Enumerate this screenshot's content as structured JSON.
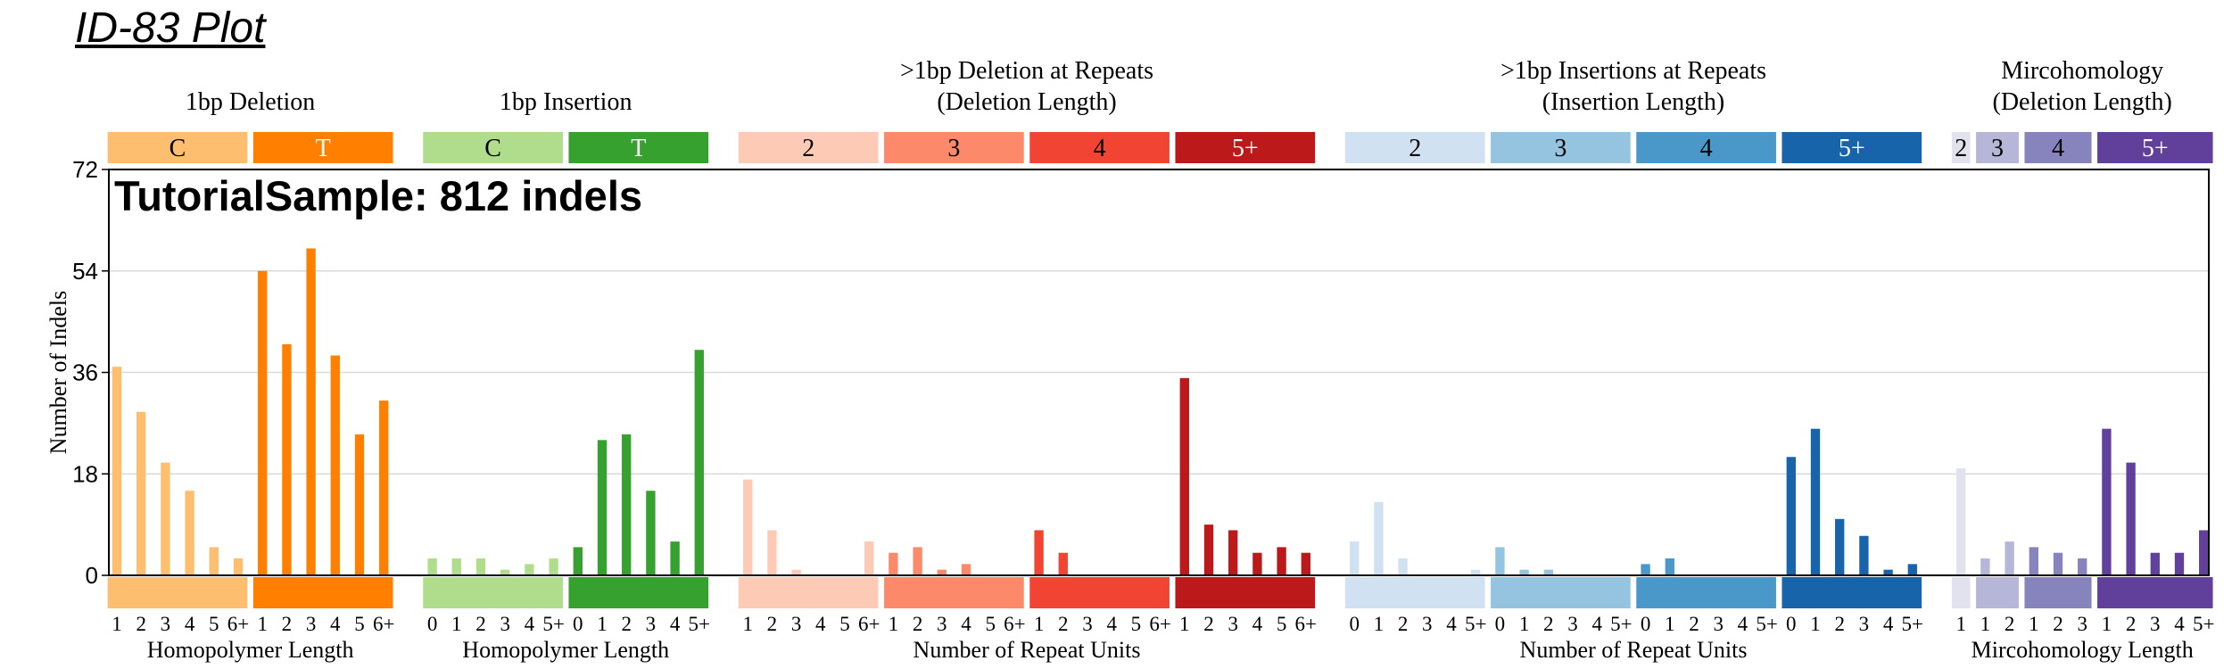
{
  "page_title": "ID-83 Plot",
  "chart_data": {
    "type": "bar",
    "title": "TutorialSample: 812 indels",
    "ylabel": "Number of Indels",
    "ylim": [
      0,
      72
    ],
    "yticks": [
      0,
      18,
      36,
      54,
      72
    ],
    "grid": true,
    "groups": [
      {
        "header": [
          "1bp Deletion"
        ],
        "xlabel": "Homopolymer Length",
        "categories": [
          {
            "label": "C",
            "color": "#FDBE6F",
            "text_color": "#000000",
            "ticks": [
              "1",
              "2",
              "3",
              "4",
              "5",
              "6+"
            ],
            "values": [
              37,
              29,
              20,
              15,
              5,
              3
            ]
          },
          {
            "label": "T",
            "color": "#FF8001",
            "text_color": "#FFFFFF",
            "ticks": [
              "1",
              "2",
              "3",
              "4",
              "5",
              "6+"
            ],
            "values": [
              54,
              41,
              58,
              39,
              25,
              31
            ]
          }
        ]
      },
      {
        "header": [
          "1bp Insertion"
        ],
        "xlabel": "Homopolymer Length",
        "categories": [
          {
            "label": "C",
            "color": "#B0DD8B",
            "text_color": "#000000",
            "ticks": [
              "0",
              "1",
              "2",
              "3",
              "4",
              "5+"
            ],
            "values": [
              3,
              3,
              3,
              1,
              2,
              3
            ]
          },
          {
            "label": "T",
            "color": "#36A12E",
            "text_color": "#FFFFFF",
            "ticks": [
              "0",
              "1",
              "2",
              "3",
              "4",
              "5+"
            ],
            "values": [
              5,
              24,
              25,
              15,
              6,
              40
            ]
          }
        ]
      },
      {
        "header": [
          ">1bp Deletion at Repeats",
          "(Deletion Length)"
        ],
        "xlabel": "Number of Repeat Units",
        "categories": [
          {
            "label": "2",
            "color": "#FDCAB5",
            "text_color": "#000000",
            "ticks": [
              "1",
              "2",
              "3",
              "4",
              "5",
              "6+"
            ],
            "values": [
              17,
              8,
              1,
              0,
              0,
              6
            ]
          },
          {
            "label": "3",
            "color": "#FC8A6A",
            "text_color": "#000000",
            "ticks": [
              "1",
              "2",
              "3",
              "4",
              "5",
              "6+"
            ],
            "values": [
              4,
              5,
              1,
              2,
              0,
              0
            ]
          },
          {
            "label": "4",
            "color": "#F14432",
            "text_color": "#000000",
            "ticks": [
              "1",
              "2",
              "3",
              "4",
              "5",
              "6+"
            ],
            "values": [
              8,
              4,
              0,
              0,
              0,
              0
            ]
          },
          {
            "label": "5+",
            "color": "#BC191A",
            "text_color": "#FFFFFF",
            "ticks": [
              "1",
              "2",
              "3",
              "4",
              "5",
              "6+"
            ],
            "values": [
              35,
              9,
              8,
              4,
              5,
              4
            ]
          }
        ]
      },
      {
        "header": [
          ">1bp Insertions at Repeats",
          "(Insertion Length)"
        ],
        "xlabel": "Number of Repeat Units",
        "categories": [
          {
            "label": "2",
            "color": "#D0E1F2",
            "text_color": "#000000",
            "ticks": [
              "0",
              "1",
              "2",
              "3",
              "4",
              "5+"
            ],
            "values": [
              6,
              13,
              3,
              0,
              0,
              1
            ]
          },
          {
            "label": "3",
            "color": "#94C4DF",
            "text_color": "#000000",
            "ticks": [
              "0",
              "1",
              "2",
              "3",
              "4",
              "5+"
            ],
            "values": [
              5,
              1,
              1,
              0,
              0,
              0
            ]
          },
          {
            "label": "4",
            "color": "#4A98C9",
            "text_color": "#000000",
            "ticks": [
              "0",
              "1",
              "2",
              "3",
              "4",
              "5+"
            ],
            "values": [
              2,
              3,
              0,
              0,
              0,
              0
            ]
          },
          {
            "label": "5+",
            "color": "#1764AB",
            "text_color": "#FFFFFF",
            "ticks": [
              "0",
              "1",
              "2",
              "3",
              "4",
              "5+"
            ],
            "values": [
              21,
              26,
              10,
              7,
              1,
              2
            ]
          }
        ]
      },
      {
        "header": [
          "Mircohomology",
          "(Deletion Length)"
        ],
        "xlabel": "Mircohomology Length",
        "categories": [
          {
            "label": "2",
            "color": "#E2E2EF",
            "text_color": "#000000",
            "ticks": [
              "1"
            ],
            "values": [
              19
            ]
          },
          {
            "label": "3",
            "color": "#B6B6D8",
            "text_color": "#000000",
            "ticks": [
              "1",
              "2"
            ],
            "values": [
              3,
              6
            ]
          },
          {
            "label": "4",
            "color": "#8683BD",
            "text_color": "#000000",
            "ticks": [
              "1",
              "2",
              "3"
            ],
            "values": [
              5,
              4,
              3
            ]
          },
          {
            "label": "5+",
            "color": "#61409B",
            "text_color": "#FFFFFF",
            "ticks": [
              "1",
              "2",
              "3",
              "4",
              "5+"
            ],
            "values": [
              26,
              20,
              4,
              4,
              8
            ]
          }
        ]
      }
    ]
  }
}
